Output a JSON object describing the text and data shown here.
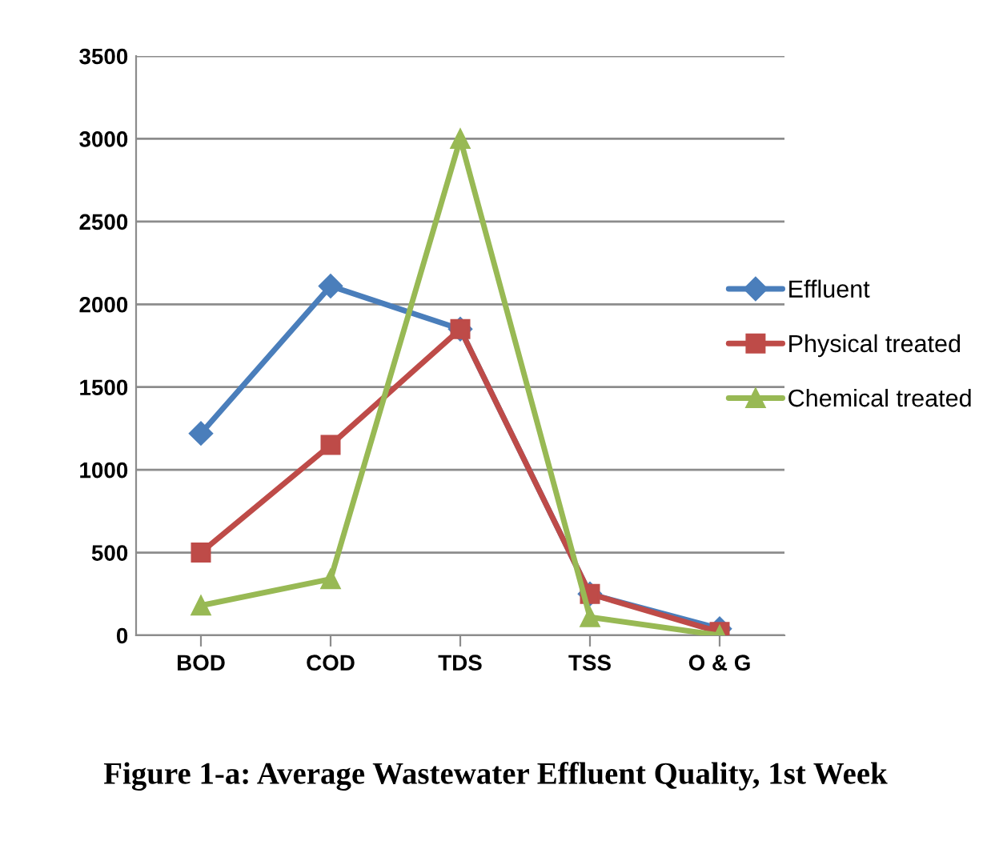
{
  "chart_data": {
    "type": "line",
    "title": "Figure 1-a: Average Wastewater Effluent Quality, 1st Week",
    "categories": [
      "BOD",
      "COD",
      "TDS",
      "TSS",
      "O & G"
    ],
    "series": [
      {
        "name": "Effluent",
        "color": "#4a7ebb",
        "values": [
          1220,
          2110,
          1850,
          250,
          40
        ],
        "marker": "diamond"
      },
      {
        "name": "Physical treated",
        "color": "#be4b48",
        "values": [
          500,
          1150,
          1850,
          250,
          20
        ],
        "marker": "square"
      },
      {
        "name": "Chemical treated",
        "color": "#98b954",
        "values": [
          180,
          340,
          3000,
          110,
          0
        ],
        "marker": "triangle"
      }
    ],
    "ylim": [
      0,
      3500
    ],
    "yticks": [
      0,
      500,
      1000,
      1500,
      2000,
      2500,
      3000,
      3500
    ],
    "grid": "y",
    "legend": "right",
    "line_style": "solid"
  }
}
